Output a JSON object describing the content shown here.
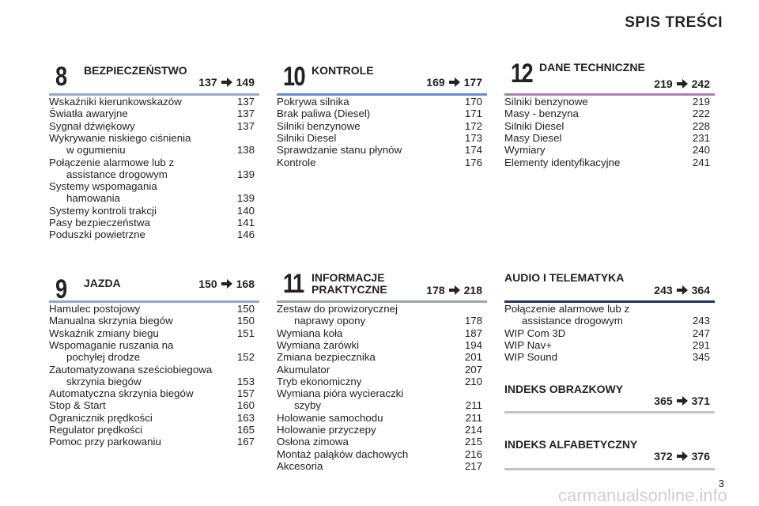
{
  "header": {
    "title": "SPIS TREŚCI"
  },
  "sections": [
    {
      "number": 8,
      "title": [
        "BEZPIECZEŃSTWO"
      ],
      "range": {
        "from": 137,
        "to": 149
      },
      "entries": [
        {
          "label": [
            "Wskaźniki kierunkowskazów"
          ],
          "page": 137
        },
        {
          "label": [
            "Światła awaryjne"
          ],
          "page": 137
        },
        {
          "label": [
            "Sygnał dźwiękowy"
          ],
          "page": 137
        },
        {
          "label": [
            "Wykrywanie niskiego ciśnienia",
            "w ogumieniu"
          ],
          "page": 138
        },
        {
          "label": [
            "Połączenie alarmowe lub z",
            "assistance drogowym"
          ],
          "page": 139
        },
        {
          "label": [
            "Systemy wspomagania",
            "hamowania"
          ],
          "page": 139
        },
        {
          "label": [
            "Systemy kontroli trakcji"
          ],
          "page": 140
        },
        {
          "label": [
            "Pasy bezpieczeństwa"
          ],
          "page": 141
        },
        {
          "label": [
            "Poduszki powietrzne"
          ],
          "page": 146
        }
      ]
    },
    {
      "number": 10,
      "title": [
        "KONTROLE"
      ],
      "range": {
        "from": 169,
        "to": 177
      },
      "entries": [
        {
          "label": [
            "Pokrywa silnika"
          ],
          "page": 170
        },
        {
          "label": [
            "Brak paliwa (Diesel)"
          ],
          "page": 171
        },
        {
          "label": [
            "Silniki benzynowe"
          ],
          "page": 172
        },
        {
          "label": [
            "Silniki Diesel"
          ],
          "page": 173
        },
        {
          "label": [
            "Sprawdzanie stanu płynów"
          ],
          "page": 174
        },
        {
          "label": [
            "Kontrole"
          ],
          "page": 176
        }
      ]
    },
    {
      "number": 12,
      "title": [
        "DANE TECHNICZNE"
      ],
      "range": {
        "from": 219,
        "to": 242
      },
      "entries": [
        {
          "label": [
            "Silniki benzynowe"
          ],
          "page": 219
        },
        {
          "label": [
            "Masy - benzyna"
          ],
          "page": 222
        },
        {
          "label": [
            "Silniki Diesel"
          ],
          "page": 228
        },
        {
          "label": [
            "Masy Diesel"
          ],
          "page": 231
        },
        {
          "label": [
            "Wymiary"
          ],
          "page": 240
        },
        {
          "label": [
            "Elementy identyfikacyjne"
          ],
          "page": 241
        }
      ]
    },
    {
      "number": 9,
      "title": [
        "JAZDA"
      ],
      "range": {
        "from": 150,
        "to": 168
      },
      "entries": [
        {
          "label": [
            "Hamulec postojowy"
          ],
          "page": 150
        },
        {
          "label": [
            "Manualna skrzynia biegów"
          ],
          "page": 150
        },
        {
          "label": [
            "Wskaźnik zmiany biegu"
          ],
          "page": 151
        },
        {
          "label": [
            "Wspomaganie ruszania na",
            "pochyłej drodze"
          ],
          "page": 152
        },
        {
          "label": [
            "Zautomatyzowana sześciobiegowa",
            "skrzynia biegów"
          ],
          "page": 153
        },
        {
          "label": [
            "Automatyczna skrzynia biegów"
          ],
          "page": 157
        },
        {
          "label": [
            "Stop & Start"
          ],
          "page": 160
        },
        {
          "label": [
            "Ogranicznik prędkości"
          ],
          "page": 163
        },
        {
          "label": [
            "Regulator prędkości"
          ],
          "page": 165
        },
        {
          "label": [
            "Pomoc przy parkowaniu"
          ],
          "page": 167
        }
      ]
    },
    {
      "number": 11,
      "title": [
        "INFORMACJE",
        "PRAKTYCZNE"
      ],
      "range": {
        "from": 178,
        "to": 218
      },
      "entries": [
        {
          "label": [
            "Zestaw do prowizorycznej",
            "naprawy opony"
          ],
          "page": 178
        },
        {
          "label": [
            "Wymiana koła"
          ],
          "page": 187
        },
        {
          "label": [
            "Wymiana żarówki"
          ],
          "page": 194
        },
        {
          "label": [
            "Zmiana bezpiecznika"
          ],
          "page": 201
        },
        {
          "label": [
            "Akumulator"
          ],
          "page": 207
        },
        {
          "label": [
            "Tryb ekonomiczny"
          ],
          "page": 210
        },
        {
          "label": [
            "Wymiana pióra wycieraczki",
            "szyby"
          ],
          "page": 211
        },
        {
          "label": [
            "Holowanie samochodu"
          ],
          "page": 211
        },
        {
          "label": [
            "Holowanie przyczepy"
          ],
          "page": 214
        },
        {
          "label": [
            "Osłona zimowa"
          ],
          "page": 215
        },
        {
          "label": [
            "Montaż pałąków dachowych"
          ],
          "page": 216
        },
        {
          "label": [
            "Akcesoria"
          ],
          "page": 217
        }
      ]
    },
    {
      "title": [
        "AUDIO I TELEMATYKA"
      ],
      "range": {
        "from": 243,
        "to": 364
      },
      "entries": [
        {
          "label": [
            "Połączenie alarmowe lub z",
            "assistance drogowym"
          ],
          "page": 243
        },
        {
          "label": [
            "WIP Com 3D"
          ],
          "page": 247
        },
        {
          "label": [
            "WIP Nav+"
          ],
          "page": 291
        },
        {
          "label": [
            "WIP Sound"
          ],
          "page": 345
        }
      ]
    },
    {
      "title": [
        "INDEKS OBRAZKOWY"
      ],
      "range": {
        "from": 365,
        "to": 371
      },
      "entries": []
    },
    {
      "title": [
        "INDEKS ALFABETYCZNY"
      ],
      "range": {
        "from": 372,
        "to": 376
      },
      "entries": []
    }
  ],
  "footer": {
    "page_number": 3,
    "watermark": "carmanualsonline.info"
  }
}
